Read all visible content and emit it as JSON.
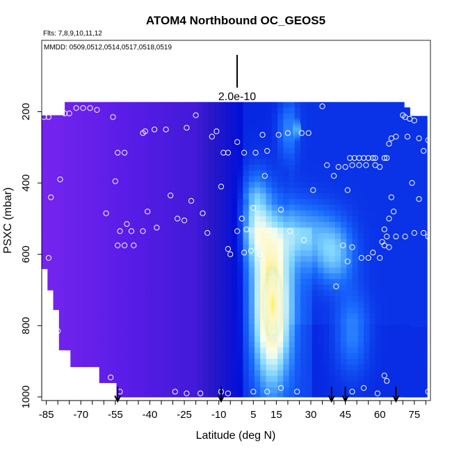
{
  "chart_data": {
    "type": "heatmap",
    "title": "ATOM4 Northbound OC_GEOS5",
    "flights_label": "Flts: 7,8,9,10,11,12",
    "mmdd_label": "MMDD: 0509,0512,0514,0517,0518,0519",
    "scale_label": "2.0e-10",
    "xlabel": "Latitude (deg N)",
    "ylabel": "PSXC (mbar)",
    "xlim": [
      -87,
      82
    ],
    "ylim": [
      1010,
      0
    ],
    "x_ticks": [
      -85,
      -80,
      -75,
      -70,
      -65,
      -60,
      -55,
      -50,
      -45,
      -40,
      -35,
      -30,
      -25,
      -20,
      -15,
      -10,
      -5,
      0,
      5,
      10,
      15,
      20,
      25,
      30,
      35,
      40,
      45,
      50,
      55,
      60,
      65,
      70,
      75,
      80
    ],
    "x_tick_labels": [
      "-85",
      "-70",
      "-55",
      "-40",
      "-25",
      "-10",
      "5",
      "15",
      "30",
      "45",
      "60",
      "75"
    ],
    "y_ticks": [
      200,
      400,
      600,
      800,
      1000
    ],
    "y_tick_labels": [
      "200",
      "400",
      "600",
      "800",
      "1000"
    ],
    "grid": false,
    "colormap": [
      "#ffffff",
      "#fff6c0",
      "#f6fff0",
      "#7fd6ff",
      "#1a6dff",
      "#0010d8",
      "#2a18c8",
      "#5a1ce8",
      "#8a2cf0"
    ],
    "arrow_latitudes": [
      -54,
      -9,
      39,
      45,
      67
    ],
    "observation_points": [
      {
        "lat": -86,
        "p": 215
      },
      {
        "lat": -84,
        "p": 215
      },
      {
        "lat": -77,
        "p": 205
      },
      {
        "lat": -75,
        "p": 205
      },
      {
        "lat": -72,
        "p": 190
      },
      {
        "lat": -69,
        "p": 190
      },
      {
        "lat": -66,
        "p": 190
      },
      {
        "lat": -63,
        "p": 195
      },
      {
        "lat": -56,
        "p": 215
      },
      {
        "lat": -54,
        "p": 315
      },
      {
        "lat": -51,
        "p": 315
      },
      {
        "lat": -55,
        "p": 395
      },
      {
        "lat": -79,
        "p": 390
      },
      {
        "lat": -83,
        "p": 440
      },
      {
        "lat": -59,
        "p": 485
      },
      {
        "lat": -54,
        "p": 575
      },
      {
        "lat": -53,
        "p": 535
      },
      {
        "lat": -50,
        "p": 515
      },
      {
        "lat": -48,
        "p": 535
      },
      {
        "lat": -47,
        "p": 575
      },
      {
        "lat": -51,
        "p": 575
      },
      {
        "lat": -43,
        "p": 535
      },
      {
        "lat": -41,
        "p": 480
      },
      {
        "lat": -37,
        "p": 525
      },
      {
        "lat": -31,
        "p": 435
      },
      {
        "lat": -28,
        "p": 500
      },
      {
        "lat": -25,
        "p": 505
      },
      {
        "lat": -22,
        "p": 450
      },
      {
        "lat": -43,
        "p": 260
      },
      {
        "lat": -42,
        "p": 255
      },
      {
        "lat": -38,
        "p": 250
      },
      {
        "lat": -33,
        "p": 250
      },
      {
        "lat": -24,
        "p": 245
      },
      {
        "lat": -20,
        "p": 210
      },
      {
        "lat": -13,
        "p": 270
      },
      {
        "lat": -8,
        "p": 315
      },
      {
        "lat": -11,
        "p": 255
      },
      {
        "lat": -6,
        "p": 315
      },
      {
        "lat": -2,
        "p": 285
      },
      {
        "lat": 1,
        "p": 315
      },
      {
        "lat": 6,
        "p": 315
      },
      {
        "lat": 11,
        "p": 310
      },
      {
        "lat": 9,
        "p": 265
      },
      {
        "lat": 16,
        "p": 265
      },
      {
        "lat": 20,
        "p": 260
      },
      {
        "lat": 26,
        "p": 260
      },
      {
        "lat": 29,
        "p": 260
      },
      {
        "lat": 35,
        "p": 185
      },
      {
        "lat": -17,
        "p": 485
      },
      {
        "lat": -15,
        "p": 540
      },
      {
        "lat": -9,
        "p": 410
      },
      {
        "lat": -2,
        "p": 535
      },
      {
        "lat": 0,
        "p": 500
      },
      {
        "lat": 2,
        "p": 530
      },
      {
        "lat": 5,
        "p": 470
      },
      {
        "lat": 10,
        "p": 380
      },
      {
        "lat": 17,
        "p": 475
      },
      {
        "lat": 21,
        "p": 535
      },
      {
        "lat": 27,
        "p": 560
      },
      {
        "lat": 31,
        "p": 420
      },
      {
        "lat": -6,
        "p": 585
      },
      {
        "lat": -5,
        "p": 600
      },
      {
        "lat": 1,
        "p": 595
      },
      {
        "lat": 4,
        "p": 590
      },
      {
        "lat": 8,
        "p": 600
      },
      {
        "lat": 37,
        "p": 350
      },
      {
        "lat": 40,
        "p": 380
      },
      {
        "lat": 42,
        "p": 355
      },
      {
        "lat": 45,
        "p": 355
      },
      {
        "lat": 46,
        "p": 420
      },
      {
        "lat": 47,
        "p": 330
      },
      {
        "lat": 49,
        "p": 330
      },
      {
        "lat": 51,
        "p": 330
      },
      {
        "lat": 53,
        "p": 330
      },
      {
        "lat": 55,
        "p": 330
      },
      {
        "lat": 57,
        "p": 330
      },
      {
        "lat": 58,
        "p": 350
      },
      {
        "lat": 60,
        "p": 355
      },
      {
        "lat": 62,
        "p": 330
      },
      {
        "lat": 48,
        "p": 350
      },
      {
        "lat": 51,
        "p": 350
      },
      {
        "lat": 54,
        "p": 350
      },
      {
        "lat": 58,
        "p": 330
      },
      {
        "lat": 63,
        "p": 330
      },
      {
        "lat": 64,
        "p": 290
      },
      {
        "lat": 65,
        "p": 275
      },
      {
        "lat": 67,
        "p": 270
      },
      {
        "lat": 70,
        "p": 210
      },
      {
        "lat": 71,
        "p": 215
      },
      {
        "lat": 73,
        "p": 220
      },
      {
        "lat": 75,
        "p": 225
      },
      {
        "lat": 72,
        "p": 270
      },
      {
        "lat": 77,
        "p": 275
      },
      {
        "lat": 79,
        "p": 310
      },
      {
        "lat": 81,
        "p": 280
      },
      {
        "lat": 77,
        "p": 445
      },
      {
        "lat": 74,
        "p": 400
      },
      {
        "lat": 65,
        "p": 440
      },
      {
        "lat": 66,
        "p": 480
      },
      {
        "lat": 64,
        "p": 500
      },
      {
        "lat": 62,
        "p": 530
      },
      {
        "lat": 63,
        "p": 550
      },
      {
        "lat": 67,
        "p": 550
      },
      {
        "lat": 71,
        "p": 550
      },
      {
        "lat": 75,
        "p": 540
      },
      {
        "lat": 79,
        "p": 540
      },
      {
        "lat": 81,
        "p": 550
      },
      {
        "lat": 61,
        "p": 565
      },
      {
        "lat": 62,
        "p": 575
      },
      {
        "lat": 64,
        "p": 580
      },
      {
        "lat": 57,
        "p": 595
      },
      {
        "lat": 60,
        "p": 610
      },
      {
        "lat": 55,
        "p": 610
      },
      {
        "lat": 52,
        "p": 610
      },
      {
        "lat": 48,
        "p": 580
      },
      {
        "lat": 46,
        "p": 620
      },
      {
        "lat": 44,
        "p": 575
      },
      {
        "lat": 41,
        "p": 690
      },
      {
        "lat": -84,
        "p": 610
      },
      {
        "lat": -80,
        "p": 815
      },
      {
        "lat": -57,
        "p": 945
      },
      {
        "lat": -53,
        "p": 985
      },
      {
        "lat": -29,
        "p": 985
      },
      {
        "lat": -24,
        "p": 990
      },
      {
        "lat": -18,
        "p": 990
      },
      {
        "lat": -9,
        "p": 985
      },
      {
        "lat": -6,
        "p": 990
      },
      {
        "lat": 5,
        "p": 985
      },
      {
        "lat": 11,
        "p": 985
      },
      {
        "lat": 17,
        "p": 975
      },
      {
        "lat": 24,
        "p": 985
      },
      {
        "lat": 48,
        "p": 985
      },
      {
        "lat": 53,
        "p": 975
      },
      {
        "lat": 59,
        "p": 990
      },
      {
        "lat": 62,
        "p": 940
      },
      {
        "lat": 63,
        "p": 955
      },
      {
        "lat": 81,
        "p": 985
      }
    ]
  }
}
